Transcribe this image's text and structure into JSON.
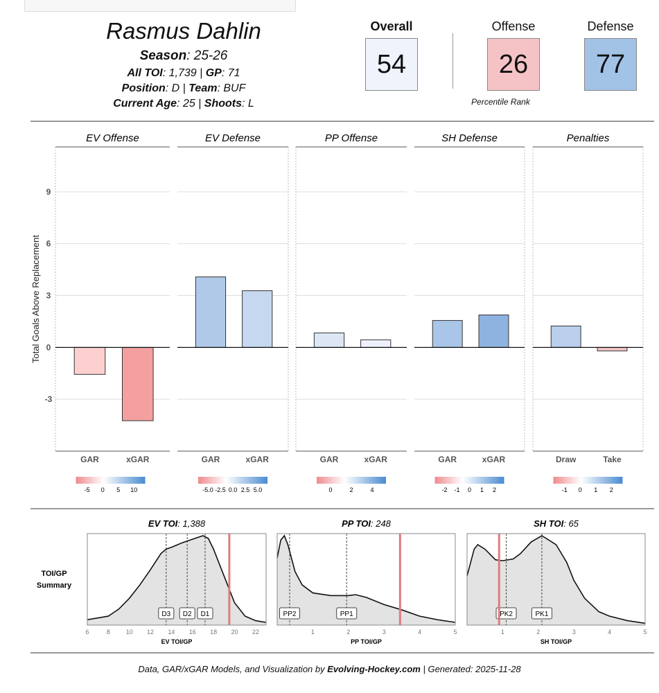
{
  "player": {
    "name": "Rasmus Dahlin",
    "season_label": "Season",
    "season": "25-26",
    "toi_label": "All TOI",
    "toi": "1,739",
    "gp_label": "GP",
    "gp": "71",
    "position_label": "Position",
    "position": "D",
    "team_label": "Team",
    "team": "BUF",
    "age_label": "Current Age",
    "age": "25",
    "shoots_label": "Shoots",
    "shoots": "L"
  },
  "ranks": {
    "overall_label": "Overall",
    "overall": "54",
    "offense_label": "Offense",
    "offense": "26",
    "defense_label": "Defense",
    "defense": "77",
    "caption": "Percentile Rank",
    "colors": {
      "overall": "#eef3fc",
      "offense": "#f5c3c6",
      "defense": "#a3c3e6"
    }
  },
  "chart_data": [
    {
      "type": "bar",
      "ylabel": "Total Goals Above Replacement",
      "ylim": [
        -6,
        11.6
      ],
      "yticks": [
        -3,
        0,
        3,
        6,
        9
      ],
      "grid": true,
      "panels": [
        {
          "title": "EV Offense",
          "categories": [
            "GAR",
            "xGAR"
          ],
          "values": [
            -1.56,
            -4.24
          ],
          "colors": [
            "#fdd0d0",
            "#f4a0a0"
          ],
          "scale_ticks": [
            "-5",
            "0",
            "5",
            "10"
          ]
        },
        {
          "title": "EV Defense",
          "categories": [
            "GAR",
            "xGAR"
          ],
          "values": [
            4.08,
            3.28
          ],
          "colors": [
            "#b0c9e8",
            "#c6d8ef"
          ],
          "scale_ticks": [
            "-5.0",
            "-2.5",
            "0.0",
            "2.5",
            "5.0"
          ]
        },
        {
          "title": "PP Offense",
          "categories": [
            "GAR",
            "xGAR"
          ],
          "values": [
            0.84,
            0.44
          ],
          "colors": [
            "#dde6f5",
            "#eef1f9"
          ],
          "scale_ticks": [
            "0",
            "2",
            "4"
          ]
        },
        {
          "title": "SH Defense",
          "categories": [
            "GAR",
            "xGAR"
          ],
          "values": [
            1.56,
            1.88
          ],
          "colors": [
            "#a9c5e8",
            "#8fb3e0"
          ],
          "scale_ticks": [
            "-2",
            "-1",
            "0",
            "1",
            "2"
          ]
        },
        {
          "title": "Penalties",
          "categories": [
            "Draw",
            "Take"
          ],
          "values": [
            1.24,
            -0.2
          ],
          "colors": [
            "#b9cfec",
            "#f3c5c5"
          ],
          "scale_ticks": [
            "-1",
            "0",
            "1",
            "2"
          ]
        }
      ]
    },
    {
      "type": "area",
      "row_label_1": "TOI/GP",
      "row_label_2": "Summary",
      "panels": [
        {
          "title_bold": "EV TOI",
          "title_value": "1,388",
          "xlabel": "EV TOI/GP",
          "xlim": [
            6,
            23
          ],
          "xticks": [
            6,
            8,
            10,
            12,
            14,
            16,
            18,
            20,
            22
          ],
          "player_value": 19.5,
          "markers": [
            {
              "label": "D3",
              "x": 13.5
            },
            {
              "label": "D2",
              "x": 15.5
            },
            {
              "label": "D1",
              "x": 17.2
            }
          ],
          "x": [
            6,
            7,
            8,
            9,
            10,
            11,
            12,
            13,
            13.5,
            14,
            15,
            16,
            17,
            17.5,
            18,
            19,
            19.5,
            20,
            21,
            22,
            23
          ],
          "y": [
            0.06,
            0.08,
            0.1,
            0.18,
            0.3,
            0.45,
            0.62,
            0.8,
            0.85,
            0.87,
            0.92,
            0.96,
            1.0,
            0.97,
            0.85,
            0.55,
            0.4,
            0.25,
            0.1,
            0.05,
            0.03
          ]
        },
        {
          "title_bold": "PP TOI",
          "title_value": "248",
          "xlabel": "PP TOI/GP",
          "xlim": [
            0,
            5
          ],
          "xticks": [
            1,
            2,
            3,
            4,
            5
          ],
          "player_value": 3.45,
          "markers": [
            {
              "label": "PP2",
              "x": 0.35
            },
            {
              "label": "PP1",
              "x": 1.95
            }
          ],
          "x": [
            0,
            0.1,
            0.2,
            0.3,
            0.5,
            0.7,
            1,
            1.5,
            2,
            2.2,
            2.5,
            3,
            3.5,
            4,
            4.5,
            5
          ],
          "y": [
            0.75,
            0.95,
            1.0,
            0.9,
            0.6,
            0.45,
            0.36,
            0.33,
            0.33,
            0.34,
            0.31,
            0.23,
            0.17,
            0.1,
            0.06,
            0.03
          ]
        },
        {
          "title_bold": "SH TOI",
          "title_value": "65",
          "xlabel": "SH TOI/GP",
          "xlim": [
            0,
            5
          ],
          "xticks": [
            1,
            2,
            3,
            4,
            5
          ],
          "player_value": 0.9,
          "markers": [
            {
              "label": "PK2",
              "x": 1.1
            },
            {
              "label": "PK1",
              "x": 2.1
            }
          ],
          "x": [
            0,
            0.2,
            0.3,
            0.5,
            0.8,
            1,
            1.3,
            1.5,
            1.8,
            2.1,
            2.5,
            2.8,
            3,
            3.3,
            3.7,
            4,
            4.5,
            5
          ],
          "y": [
            0.55,
            0.85,
            0.9,
            0.85,
            0.73,
            0.72,
            0.74,
            0.8,
            0.93,
            1.0,
            0.9,
            0.7,
            0.5,
            0.3,
            0.15,
            0.1,
            0.05,
            0.02
          ]
        }
      ]
    }
  ],
  "footer": {
    "prefix": "Data, GAR/xGAR Models, and Visualization by ",
    "brand": "Evolving-Hockey.com",
    "suffix": " | Generated: 2025-11-28"
  }
}
